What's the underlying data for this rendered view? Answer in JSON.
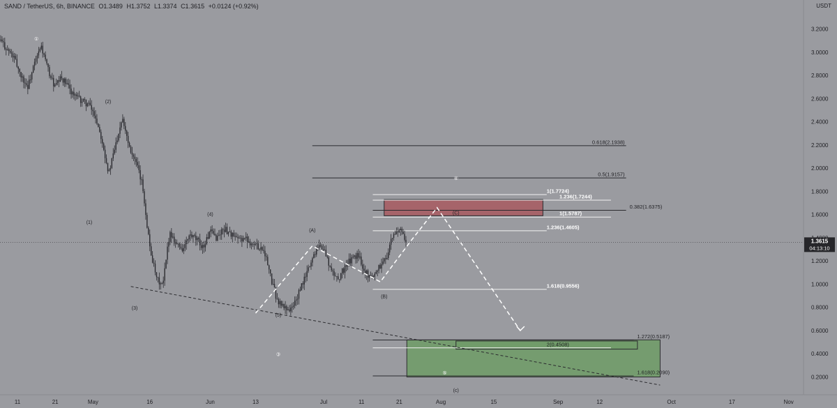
{
  "header": {
    "symbol": "SAND / TetherUS, 6h, BINANCE",
    "open": "O1.3489",
    "high": "H1.3752",
    "low": "L1.3374",
    "close": "C1.3615",
    "change": "+0.0124 (+0.92%)"
  },
  "price_axis": {
    "unit": "USDT",
    "current_price": "1.3615",
    "countdown": "04:13:10"
  },
  "colors": {
    "background": "#9a9ba0",
    "candle": "#2b2b30",
    "resistance_zone": "#a85a60",
    "support_zone": "#6e9c66",
    "projection": "#ffffff",
    "trendline": "#2b2b2f",
    "price_label": "#26262a"
  },
  "chart_data": {
    "type": "line",
    "title": "",
    "xlabel": "",
    "ylabel": "",
    "ylim": [
      0.1,
      3.35
    ],
    "x_ticks": [
      "11",
      "21",
      "May",
      "16",
      "Jun",
      "13",
      "Jul",
      "11",
      "21",
      "Aug",
      "15",
      "Sep",
      "12",
      "Oct",
      "17",
      "Nov"
    ],
    "y_ticks": [
      "3.2000",
      "3.0000",
      "2.8000",
      "2.6000",
      "2.4000",
      "2.2000",
      "2.0000",
      "1.8000",
      "1.6000",
      "1.4000",
      "1.2000",
      "1.0000",
      "0.8000",
      "0.6000",
      "0.4000",
      "0.2000"
    ],
    "series": [
      {
        "values": [
          3.1,
          3.02,
          2.95,
          2.8,
          2.7,
          2.9,
          3.05,
          2.85,
          2.7,
          2.78,
          2.7,
          2.62,
          2.58,
          2.55,
          2.45,
          2.25,
          1.95,
          2.2,
          2.45,
          2.2,
          2.05,
          1.85,
          1.35,
          1.05,
          0.98,
          1.45,
          1.35,
          1.3,
          1.42,
          1.38,
          1.32,
          1.45,
          1.4,
          1.48,
          1.44,
          1.38,
          1.4,
          1.36,
          1.33,
          1.3,
          1.05,
          0.85,
          0.8,
          0.78,
          0.9,
          1.05,
          1.2,
          1.35,
          1.28,
          1.1,
          1.05,
          1.15,
          1.22,
          1.25,
          1.1,
          1.06,
          1.15,
          1.22,
          1.4,
          1.48,
          1.36
        ]
      }
    ],
    "projection_path": [
      {
        "date": "Jun 13",
        "price": 0.75
      },
      {
        "date": "Jun 28",
        "price": 1.33
      },
      {
        "date": "Jul 16",
        "price": 1.02
      },
      {
        "date": "Jul 24",
        "price": 1.37
      },
      {
        "date": "Jul 31",
        "price": 1.66
      },
      {
        "date": "Aug 22",
        "price": 0.6
      }
    ],
    "trendline": [
      {
        "date": "May 11",
        "price": 0.98
      },
      {
        "date": "Sep 28",
        "price": 0.13
      }
    ],
    "zones": [
      {
        "name": "resistance",
        "low": 1.59,
        "high": 1.73
      },
      {
        "name": "support",
        "low": 0.2,
        "high": 0.52
      },
      {
        "name": "support-inner",
        "low": 0.44,
        "high": 0.51
      }
    ],
    "levels": [
      {
        "label": "0.618(2.1938)",
        "price": 2.1938,
        "style": "dark"
      },
      {
        "label": "0.5(1.9157)",
        "price": 1.9157,
        "style": "dark"
      },
      {
        "label": "1(1.7724)",
        "price": 1.7724,
        "style": "light"
      },
      {
        "label": "1.236(1.7244)",
        "price": 1.7244,
        "style": "light"
      },
      {
        "label": "0.382(1.6375)",
        "price": 1.6375,
        "style": "dark"
      },
      {
        "label": "1(1.5787)",
        "price": 1.5787,
        "style": "light"
      },
      {
        "label": "1.236(1.4605)",
        "price": 1.4605,
        "style": "light"
      },
      {
        "label": "1.618(0.9556)",
        "price": 0.9556,
        "style": "light"
      },
      {
        "label": "1.272(0.5187)",
        "price": 0.5187,
        "style": "dark"
      },
      {
        "label": "2(0.4508)",
        "price": 0.4508,
        "style": "zone"
      },
      {
        "label": "1.618(0.2090)",
        "price": 0.209,
        "style": "dark"
      }
    ],
    "wave_labels": [
      "①",
      "(1)",
      "(2)",
      "(3)",
      "(4)",
      "(5)",
      "③",
      "(A)",
      "(B)",
      "④",
      "(C)",
      "⑤",
      "(c)"
    ]
  }
}
